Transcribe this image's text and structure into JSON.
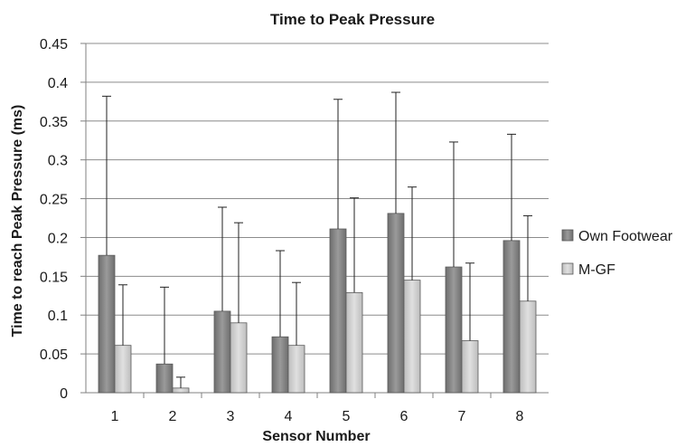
{
  "chart_data": {
    "type": "bar",
    "title": "Time to Peak Pressure",
    "xlabel": "Sensor Number",
    "ylabel": "Time to reach Peak Pressure (ms)",
    "categories": [
      "1",
      "2",
      "3",
      "4",
      "5",
      "6",
      "7",
      "8"
    ],
    "ylim": [
      0,
      0.45
    ],
    "yticks": [
      "0",
      "0.05",
      "0.1",
      "0.15",
      "0.2",
      "0.25",
      "0.3",
      "0.35",
      "0.4",
      "0.45"
    ],
    "grid": true,
    "legend_position": "right",
    "series": [
      {
        "name": "Own Footwear",
        "color": "#7f7f7f",
        "values": [
          0.177,
          0.037,
          0.105,
          0.072,
          0.211,
          0.231,
          0.162,
          0.196
        ],
        "error_upper": [
          0.382,
          0.136,
          0.239,
          0.183,
          0.378,
          0.387,
          0.323,
          0.333
        ]
      },
      {
        "name": "M-GF",
        "color": "#cfcfcf",
        "values": [
          0.061,
          0.006,
          0.09,
          0.061,
          0.129,
          0.145,
          0.067,
          0.118
        ],
        "error_upper": [
          0.139,
          0.02,
          0.219,
          0.142,
          0.251,
          0.265,
          0.167,
          0.228
        ]
      }
    ]
  }
}
